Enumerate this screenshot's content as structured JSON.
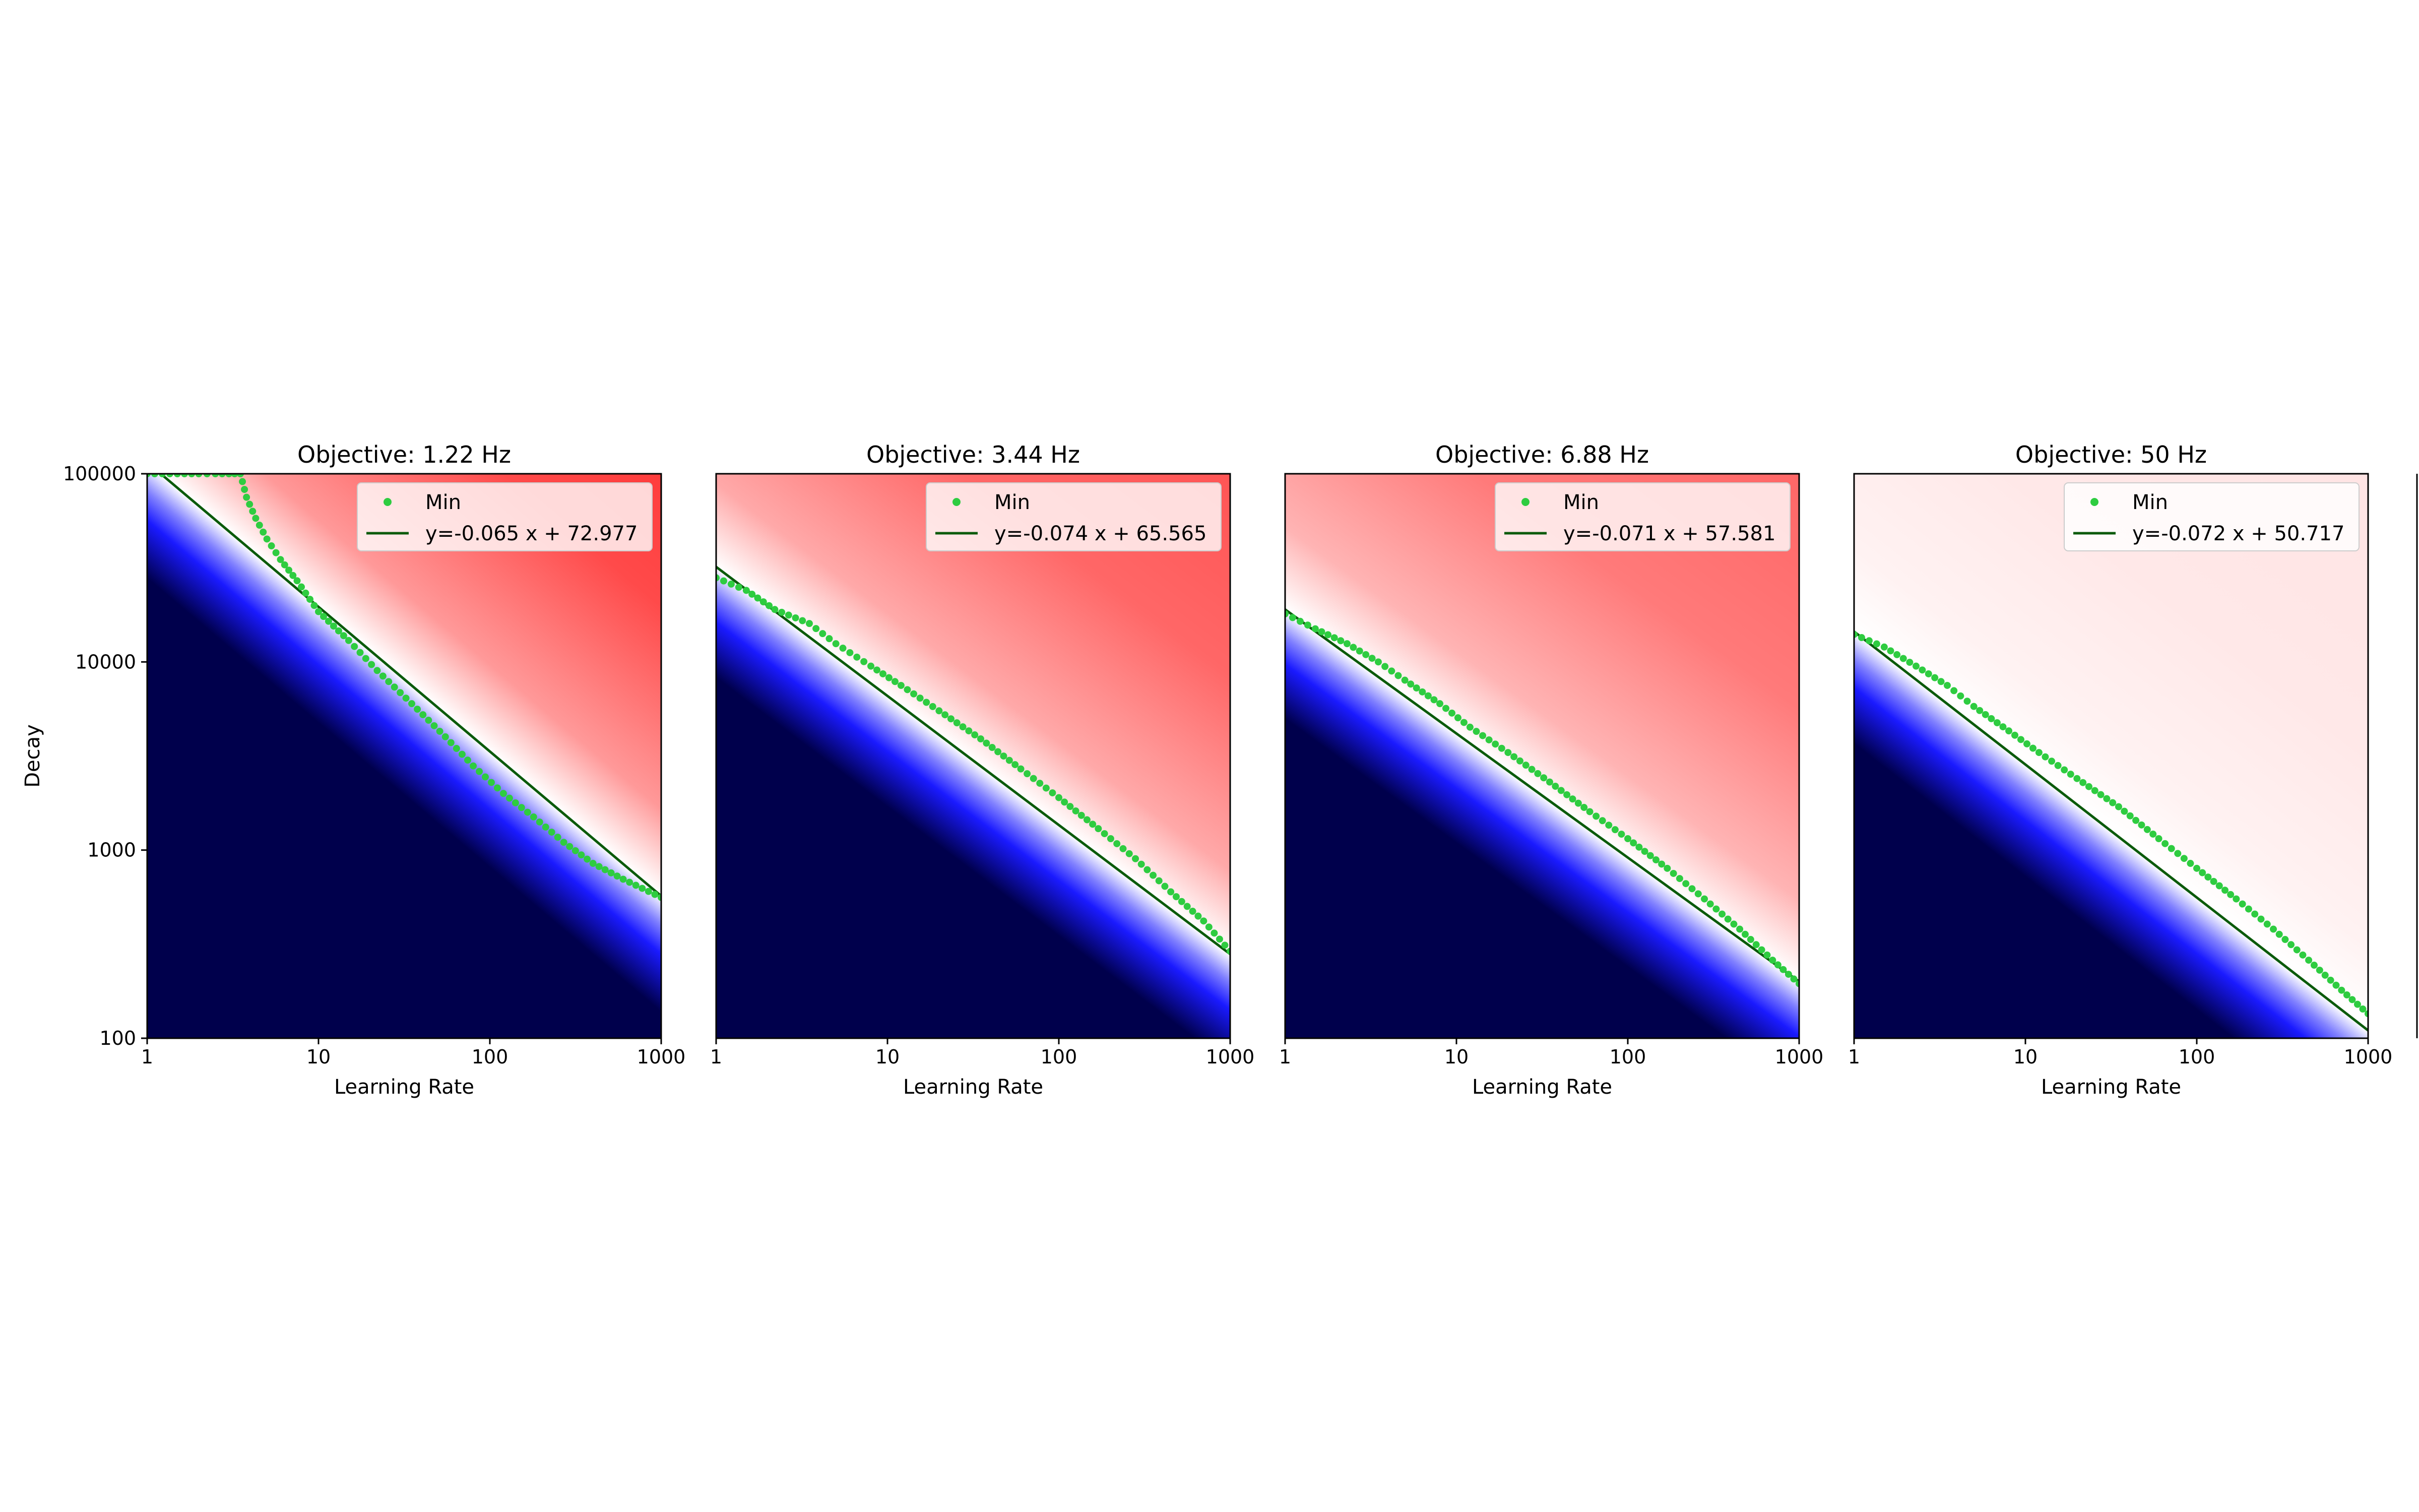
{
  "figure": {
    "ylabel": "Decay",
    "right_edge_panel": "partially visible (cut off at right edge)"
  },
  "chart_data": [
    {
      "type": "heatmap",
      "title": "Objective: 1.22 Hz",
      "xlabel": "Learning Rate",
      "ylabel": "Decay",
      "x_scale": "log",
      "y_scale": "log",
      "xlim": [
        1,
        1000
      ],
      "ylim": [
        100,
        100000
      ],
      "x_ticks": [
        "1",
        "10",
        "100",
        "1000"
      ],
      "y_ticks": [
        "100",
        "1000",
        "10000",
        "100000"
      ],
      "colormap": "seismic",
      "colors": {
        "low": "#00004c",
        "mid": "#ffffff",
        "high": "#ff1111"
      },
      "high_intensity": 0.95,
      "min_points": [
        [
          1,
          100000
        ],
        [
          1.5,
          100000
        ],
        [
          2,
          100000
        ],
        [
          2.5,
          100000
        ],
        [
          3,
          100000
        ],
        [
          3.5,
          100000
        ],
        [
          3.8,
          75000
        ],
        [
          4.3,
          58000
        ],
        [
          5,
          45000
        ],
        [
          6,
          35000
        ],
        [
          7.5,
          27000
        ],
        [
          10,
          18500
        ],
        [
          15,
          13000
        ],
        [
          22,
          9000
        ],
        [
          35,
          6000
        ],
        [
          55,
          4000
        ],
        [
          80,
          2800
        ],
        [
          120,
          2000
        ],
        [
          180,
          1500
        ],
        [
          270,
          1100
        ],
        [
          400,
          850
        ],
        [
          600,
          700
        ],
        [
          1000,
          560
        ]
      ],
      "fit_points": [
        [
          1.2,
          100000
        ],
        [
          1000,
          570
        ]
      ],
      "legend": [
        {
          "label": "Min",
          "marker": "dot",
          "color": "#2ecc40"
        },
        {
          "label": "y=-0.065 x + 72.977",
          "marker": "line",
          "color": "#0b5a0b"
        }
      ],
      "legend_position": "upper right"
    },
    {
      "type": "heatmap",
      "title": "Objective: 3.44 Hz",
      "xlabel": "Learning Rate",
      "x_scale": "log",
      "y_scale": "log",
      "xlim": [
        1,
        1000
      ],
      "ylim": [
        100,
        100000
      ],
      "x_ticks": [
        "1",
        "10",
        "100",
        "1000"
      ],
      "colormap": "seismic",
      "colors": {
        "low": "#00004c",
        "mid": "#ffffff",
        "high": "#ff1111"
      },
      "high_intensity": 0.8,
      "min_points": [
        [
          1,
          28000
        ],
        [
          1.5,
          24000
        ],
        [
          2.2,
          19000
        ],
        [
          3.5,
          16000
        ],
        [
          5,
          12500
        ],
        [
          8,
          9500
        ],
        [
          12,
          7500
        ],
        [
          20,
          5500
        ],
        [
          35,
          3900
        ],
        [
          60,
          2700
        ],
        [
          100,
          1900
        ],
        [
          170,
          1300
        ],
        [
          280,
          900
        ],
        [
          450,
          600
        ],
        [
          700,
          420
        ],
        [
          1000,
          290
        ]
      ],
      "fit_points": [
        [
          1,
          32000
        ],
        [
          1000,
          280
        ]
      ],
      "legend": [
        {
          "label": "Min",
          "marker": "dot",
          "color": "#2ecc40"
        },
        {
          "label": "y=-0.074 x + 65.565",
          "marker": "line",
          "color": "#0b5a0b"
        }
      ],
      "legend_position": "upper right"
    },
    {
      "type": "heatmap",
      "title": "Objective: 6.88 Hz",
      "xlabel": "Learning Rate",
      "x_scale": "log",
      "y_scale": "log",
      "xlim": [
        1,
        1000
      ],
      "ylim": [
        100,
        100000
      ],
      "x_ticks": [
        "1",
        "10",
        "100",
        "1000"
      ],
      "colormap": "seismic",
      "colors": {
        "low": "#00004c",
        "mid": "#ffffff",
        "high": "#ff1111"
      },
      "high_intensity": 0.7,
      "min_points": [
        [
          1,
          18000
        ],
        [
          1.5,
          15000
        ],
        [
          2.3,
          12500
        ],
        [
          3.5,
          10000
        ],
        [
          5,
          8000
        ],
        [
          8,
          6000
        ],
        [
          12,
          4500
        ],
        [
          20,
          3300
        ],
        [
          35,
          2300
        ],
        [
          60,
          1600
        ],
        [
          100,
          1150
        ],
        [
          170,
          800
        ],
        [
          280,
          550
        ],
        [
          450,
          380
        ],
        [
          700,
          260
        ],
        [
          1000,
          195
        ]
      ],
      "fit_points": [
        [
          1,
          19000
        ],
        [
          1000,
          200
        ]
      ],
      "legend": [
        {
          "label": "Min",
          "marker": "dot",
          "color": "#2ecc40"
        },
        {
          "label": "y=-0.071 x + 57.581",
          "marker": "line",
          "color": "#0b5a0b"
        }
      ],
      "legend_position": "upper right"
    },
    {
      "type": "heatmap",
      "title": "Objective: 50 Hz",
      "xlabel": "Learning Rate",
      "x_scale": "log",
      "y_scale": "log",
      "xlim": [
        1,
        1000
      ],
      "ylim": [
        100,
        100000
      ],
      "x_ticks": [
        "1",
        "10",
        "100",
        "1000"
      ],
      "colormap": "seismic",
      "colors": {
        "low": "#00004c",
        "mid": "#ffffff",
        "high": "#ff1111"
      },
      "high_intensity": 0.12,
      "min_points": [
        [
          1,
          14000
        ],
        [
          1.5,
          12000
        ],
        [
          2.3,
          9500
        ],
        [
          3.5,
          7500
        ],
        [
          5,
          5800
        ],
        [
          8,
          4300
        ],
        [
          12,
          3300
        ],
        [
          20,
          2400
        ],
        [
          35,
          1700
        ],
        [
          60,
          1150
        ],
        [
          100,
          800
        ],
        [
          170,
          550
        ],
        [
          280,
          380
        ],
        [
          450,
          260
        ],
        [
          700,
          180
        ],
        [
          1000,
          135
        ]
      ],
      "fit_points": [
        [
          1,
          14500
        ],
        [
          1000,
          110
        ]
      ],
      "legend": [
        {
          "label": "Min",
          "marker": "dot",
          "color": "#2ecc40"
        },
        {
          "label": "y=-0.072 x + 50.717",
          "marker": "line",
          "color": "#0b5a0b"
        }
      ],
      "legend_position": "upper right"
    }
  ]
}
